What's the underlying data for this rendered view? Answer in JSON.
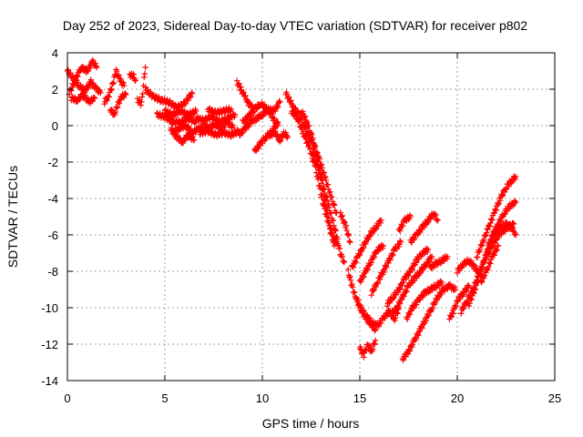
{
  "chart_data": {
    "type": "scatter",
    "title": "Day 252 of 2023, Sidereal Day-to-day VTEC variation (SDTVAR) for receiver p802",
    "xlabel": "GPS time / hours",
    "ylabel": "SDTVAR / TECUs",
    "xlim": [
      0,
      25
    ],
    "ylim": [
      -14,
      4
    ],
    "xticks": [
      0,
      5,
      10,
      15,
      20,
      25
    ],
    "yticks": [
      -14,
      -12,
      -10,
      -8,
      -6,
      -4,
      -2,
      0,
      2,
      4
    ],
    "grid": true,
    "marker": "plus",
    "color": "#ff0000",
    "tracks": [
      [
        [
          0.0,
          3.0
        ],
        [
          0.3,
          2.6
        ],
        [
          0.6,
          2.2
        ],
        [
          0.9,
          1.9
        ],
        [
          1.2,
          2.4
        ],
        [
          1.5,
          2.0
        ],
        [
          1.7,
          1.8
        ]
      ],
      [
        [
          0.1,
          1.8
        ],
        [
          0.4,
          2.5
        ],
        [
          0.7,
          3.2
        ],
        [
          1.0,
          3.0
        ],
        [
          1.3,
          3.5
        ],
        [
          1.5,
          3.2
        ]
      ],
      [
        [
          0.2,
          1.5
        ],
        [
          0.5,
          1.4
        ],
        [
          0.8,
          1.7
        ],
        [
          1.1,
          1.3
        ],
        [
          1.4,
          1.5
        ]
      ],
      [
        [
          1.9,
          1.3
        ],
        [
          2.1,
          1.6
        ],
        [
          2.3,
          2.2
        ],
        [
          2.5,
          3.0
        ],
        [
          2.7,
          2.5
        ],
        [
          2.9,
          2.2
        ]
      ],
      [
        [
          2.2,
          0.9
        ],
        [
          2.4,
          0.6
        ],
        [
          2.6,
          1.2
        ],
        [
          2.8,
          1.6
        ],
        [
          3.0,
          1.7
        ]
      ],
      [
        [
          3.2,
          2.8
        ],
        [
          3.4,
          2.7
        ],
        [
          3.5,
          2.5
        ]
      ],
      [
        [
          3.6,
          1.4
        ],
        [
          3.8,
          1.2
        ],
        [
          4.0,
          3.2
        ]
      ],
      [
        [
          4.0,
          2.0
        ],
        [
          4.4,
          1.6
        ],
        [
          4.8,
          1.4
        ],
        [
          5.2,
          1.3
        ],
        [
          5.6,
          1.0
        ],
        [
          6.0,
          1.2
        ],
        [
          6.4,
          1.8
        ]
      ],
      [
        [
          4.6,
          0.6
        ],
        [
          5.0,
          0.5
        ],
        [
          5.4,
          0.2
        ],
        [
          5.8,
          0.2
        ],
        [
          6.2,
          0.4
        ],
        [
          6.6,
          0.2
        ]
      ],
      [
        [
          5.0,
          0.8
        ],
        [
          5.4,
          0.6
        ],
        [
          5.8,
          0.8
        ],
        [
          6.2,
          0.6
        ],
        [
          6.6,
          0.8
        ]
      ],
      [
        [
          5.3,
          -0.2
        ],
        [
          5.6,
          -0.6
        ],
        [
          5.9,
          -0.9
        ],
        [
          6.2,
          -0.5
        ],
        [
          6.5,
          -0.8
        ]
      ],
      [
        [
          5.5,
          -0.3
        ],
        [
          5.8,
          -0.1
        ],
        [
          6.1,
          0.0
        ],
        [
          6.4,
          -0.4
        ],
        [
          6.7,
          -0.2
        ],
        [
          7.0,
          0.0
        ],
        [
          7.3,
          -0.1
        ],
        [
          7.6,
          0.1
        ],
        [
          7.9,
          -0.2
        ],
        [
          8.2,
          0.2
        ],
        [
          8.5,
          -0.1
        ]
      ],
      [
        [
          6.6,
          0.4
        ],
        [
          7.0,
          0.3
        ],
        [
          7.4,
          0.5
        ],
        [
          7.8,
          0.2
        ],
        [
          8.2,
          0.4
        ],
        [
          8.6,
          0.6
        ]
      ],
      [
        [
          6.8,
          -0.4
        ],
        [
          7.2,
          -0.3
        ],
        [
          7.6,
          -0.5
        ],
        [
          8.0,
          -0.4
        ],
        [
          8.4,
          -0.5
        ],
        [
          8.8,
          -0.3
        ]
      ],
      [
        [
          7.2,
          0.9
        ],
        [
          7.6,
          0.7
        ],
        [
          8.0,
          0.8
        ],
        [
          8.4,
          0.9
        ]
      ],
      [
        [
          8.7,
          2.4
        ],
        [
          8.9,
          2.0
        ],
        [
          9.1,
          1.6
        ],
        [
          9.3,
          1.2
        ],
        [
          9.5,
          1.0
        ]
      ],
      [
        [
          8.8,
          -0.5
        ],
        [
          9.1,
          -0.2
        ],
        [
          9.4,
          0.2
        ],
        [
          9.7,
          0.4
        ],
        [
          10.0,
          0.6
        ],
        [
          10.3,
          0.9
        ],
        [
          10.6,
          0.8
        ],
        [
          10.9,
          1.3
        ]
      ],
      [
        [
          9.0,
          0.2
        ],
        [
          9.3,
          0.5
        ],
        [
          9.6,
          0.9
        ],
        [
          9.9,
          1.2
        ],
        [
          10.2,
          1.0
        ],
        [
          10.5,
          0.5
        ],
        [
          10.8,
          0.0
        ]
      ],
      [
        [
          9.6,
          -1.4
        ],
        [
          9.9,
          -1.0
        ],
        [
          10.2,
          -0.6
        ],
        [
          10.5,
          -0.3
        ],
        [
          10.8,
          0.2
        ]
      ],
      [
        [
          10.4,
          -0.6
        ],
        [
          10.6,
          -0.3
        ],
        [
          10.9,
          -0.8
        ],
        [
          11.1,
          -0.4
        ],
        [
          11.3,
          -0.6
        ]
      ],
      [
        [
          11.2,
          1.8
        ],
        [
          11.4,
          1.4
        ],
        [
          11.6,
          1.0
        ],
        [
          11.9,
          0.6
        ],
        [
          12.2,
          -0.2
        ],
        [
          12.5,
          -0.8
        ],
        [
          12.8,
          -1.8
        ],
        [
          13.0,
          -2.6
        ],
        [
          13.2,
          -3.6
        ],
        [
          13.4,
          -4.4
        ],
        [
          13.6,
          -5.2
        ],
        [
          13.8,
          -6.0
        ],
        [
          14.0,
          -7.0
        ],
        [
          14.2,
          -7.5
        ]
      ],
      [
        [
          11.5,
          0.8
        ],
        [
          11.8,
          0.4
        ],
        [
          12.1,
          -0.4
        ],
        [
          12.4,
          -1.2
        ],
        [
          12.7,
          -2.2
        ],
        [
          12.9,
          -3.2
        ],
        [
          13.1,
          -4.2
        ],
        [
          13.3,
          -5.0
        ],
        [
          13.6,
          -6.0
        ],
        [
          13.9,
          -6.6
        ]
      ],
      [
        [
          12.0,
          0.8
        ],
        [
          12.3,
          0.2
        ],
        [
          12.6,
          -0.8
        ],
        [
          12.9,
          -1.8
        ],
        [
          13.2,
          -2.8
        ],
        [
          13.5,
          -3.8
        ],
        [
          13.8,
          -4.8
        ]
      ],
      [
        [
          12.6,
          -1.4
        ],
        [
          12.9,
          -2.4
        ],
        [
          13.1,
          -3.6
        ],
        [
          13.3,
          -4.6
        ],
        [
          13.5,
          -5.8
        ],
        [
          13.7,
          -6.6
        ]
      ],
      [
        [
          14.0,
          -4.8
        ],
        [
          14.3,
          -5.6
        ],
        [
          14.5,
          -6.4
        ]
      ],
      [
        [
          14.4,
          -8.0
        ],
        [
          14.6,
          -8.8
        ],
        [
          14.8,
          -9.5
        ],
        [
          15.0,
          -10.0
        ],
        [
          15.3,
          -10.4
        ],
        [
          15.6,
          -10.8
        ],
        [
          15.9,
          -11.0
        ],
        [
          16.2,
          -10.6
        ],
        [
          16.5,
          -10.2
        ],
        [
          16.8,
          -10.6
        ],
        [
          17.0,
          -10.0
        ]
      ],
      [
        [
          14.6,
          -7.8
        ],
        [
          14.9,
          -7.2
        ],
        [
          15.2,
          -6.6
        ],
        [
          15.5,
          -6.0
        ],
        [
          15.8,
          -5.6
        ],
        [
          16.1,
          -5.2
        ]
      ],
      [
        [
          15.0,
          -8.6
        ],
        [
          15.3,
          -8.0
        ],
        [
          15.6,
          -7.4
        ],
        [
          15.9,
          -6.8
        ],
        [
          16.2,
          -6.6
        ]
      ],
      [
        [
          14.9,
          -9.6
        ],
        [
          15.2,
          -10.4
        ],
        [
          15.5,
          -10.8
        ],
        [
          15.8,
          -11.2
        ]
      ],
      [
        [
          15.0,
          -12.2
        ],
        [
          15.2,
          -12.6
        ],
        [
          15.4,
          -12.0
        ],
        [
          15.6,
          -12.4
        ],
        [
          15.8,
          -11.8
        ]
      ],
      [
        [
          15.6,
          -9.2
        ],
        [
          15.9,
          -8.6
        ],
        [
          16.2,
          -8.0
        ],
        [
          16.5,
          -7.4
        ],
        [
          16.8,
          -6.8
        ],
        [
          17.1,
          -6.4
        ]
      ],
      [
        [
          16.4,
          -9.8
        ],
        [
          16.7,
          -9.4
        ],
        [
          17.0,
          -9.0
        ],
        [
          17.3,
          -8.4
        ],
        [
          17.6,
          -8.0
        ],
        [
          17.9,
          -7.4
        ],
        [
          18.2,
          -7.0
        ],
        [
          18.5,
          -6.8
        ]
      ],
      [
        [
          16.6,
          -10.4
        ],
        [
          16.9,
          -10.0
        ],
        [
          17.2,
          -9.4
        ],
        [
          17.5,
          -8.8
        ],
        [
          17.8,
          -8.4
        ],
        [
          18.1,
          -8.0
        ],
        [
          18.4,
          -7.6
        ],
        [
          18.7,
          -7.2
        ]
      ],
      [
        [
          17.2,
          -12.8
        ],
        [
          17.5,
          -12.4
        ],
        [
          17.8,
          -11.8
        ],
        [
          18.1,
          -11.2
        ],
        [
          18.4,
          -10.6
        ],
        [
          18.7,
          -10.0
        ],
        [
          19.0,
          -9.4
        ],
        [
          19.3,
          -9.0
        ],
        [
          19.6,
          -8.8
        ],
        [
          19.9,
          -9.0
        ]
      ],
      [
        [
          17.4,
          -10.6
        ],
        [
          17.7,
          -10.0
        ],
        [
          18.0,
          -9.6
        ],
        [
          18.3,
          -9.2
        ],
        [
          18.6,
          -9.0
        ],
        [
          18.9,
          -8.8
        ],
        [
          19.2,
          -8.6
        ]
      ],
      [
        [
          17.6,
          -6.4
        ],
        [
          17.9,
          -6.0
        ],
        [
          18.2,
          -5.6
        ],
        [
          18.5,
          -5.2
        ],
        [
          18.8,
          -4.8
        ],
        [
          19.0,
          -5.2
        ]
      ],
      [
        [
          17.0,
          -5.8
        ],
        [
          17.3,
          -5.2
        ],
        [
          17.6,
          -5.0
        ]
      ],
      [
        [
          18.6,
          -7.8
        ],
        [
          18.9,
          -7.6
        ],
        [
          19.2,
          -7.4
        ],
        [
          19.5,
          -7.2
        ]
      ],
      [
        [
          19.6,
          -10.6
        ],
        [
          19.8,
          -10.2
        ],
        [
          20.0,
          -9.6
        ],
        [
          20.3,
          -9.2
        ],
        [
          20.6,
          -8.8
        ]
      ],
      [
        [
          20.0,
          -8.0
        ],
        [
          20.3,
          -7.6
        ],
        [
          20.6,
          -7.4
        ],
        [
          20.9,
          -7.8
        ],
        [
          21.2,
          -8.2
        ]
      ],
      [
        [
          20.2,
          -10.2
        ],
        [
          20.5,
          -9.6
        ],
        [
          20.8,
          -9.0
        ],
        [
          21.1,
          -8.2
        ],
        [
          21.4,
          -7.4
        ],
        [
          21.7,
          -6.8
        ],
        [
          22.0,
          -6.2
        ],
        [
          22.3,
          -5.8
        ],
        [
          22.6,
          -5.6
        ],
        [
          22.9,
          -5.4
        ]
      ],
      [
        [
          20.6,
          -9.8
        ],
        [
          20.9,
          -9.0
        ],
        [
          21.2,
          -8.0
        ],
        [
          21.5,
          -7.0
        ],
        [
          21.8,
          -6.0
        ],
        [
          22.1,
          -5.4
        ],
        [
          22.4,
          -4.8
        ],
        [
          22.7,
          -4.4
        ],
        [
          23.0,
          -4.2
        ]
      ],
      [
        [
          21.0,
          -7.2
        ],
        [
          21.3,
          -6.4
        ],
        [
          21.6,
          -5.6
        ],
        [
          21.9,
          -4.8
        ],
        [
          22.2,
          -4.0
        ],
        [
          22.5,
          -3.4
        ],
        [
          22.8,
          -3.0
        ],
        [
          23.0,
          -2.8
        ]
      ],
      [
        [
          21.6,
          -6.6
        ],
        [
          21.9,
          -6.0
        ],
        [
          22.2,
          -5.6
        ],
        [
          22.5,
          -5.4
        ],
        [
          22.8,
          -5.6
        ],
        [
          23.0,
          -6.0
        ]
      ],
      [
        [
          21.2,
          -8.6
        ],
        [
          21.5,
          -8.0
        ],
        [
          21.8,
          -7.2
        ],
        [
          22.1,
          -6.6
        ]
      ]
    ]
  }
}
